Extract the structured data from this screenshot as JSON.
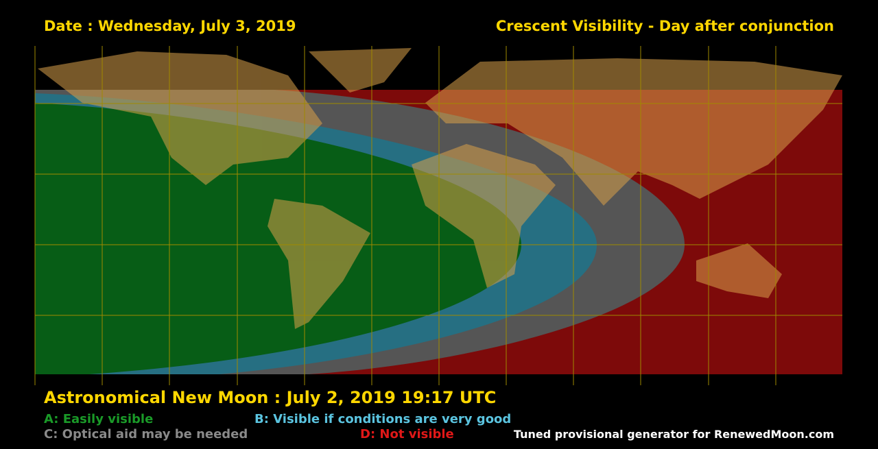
{
  "header": {
    "date": "Date : Wednesday, July 3, 2019",
    "title": "Crescent Visibility - Day after conjunction"
  },
  "new_moon": "Astronomical New Moon : July 2, 2019 19:17 UTC",
  "legend": {
    "a": "A: Easily visible",
    "b": "B: Visible if conditions are very good",
    "c": "C: Optical aid may be needed",
    "d": "D: Not visible"
  },
  "credit": "Tuned provisional generator for RenewedMoon.com"
}
